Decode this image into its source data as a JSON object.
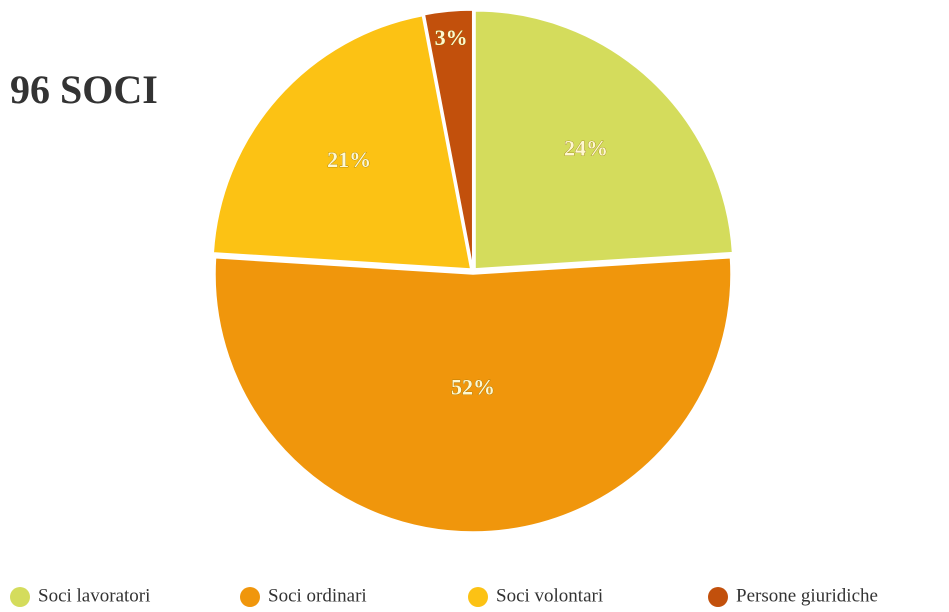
{
  "chart_data": {
    "type": "pie",
    "title": "96 SOCI",
    "categories": [
      "Soci lavoratori",
      "Soci ordinari",
      "Soci volontari",
      "Persone giuridiche"
    ],
    "values": [
      24,
      52,
      21,
      3
    ],
    "value_labels": [
      "24%",
      "52%",
      "21%",
      "3%"
    ],
    "colors": [
      "#d4dc5c",
      "#f0960c",
      "#fcc214",
      "#c2500c"
    ],
    "legend": "bottom"
  }
}
